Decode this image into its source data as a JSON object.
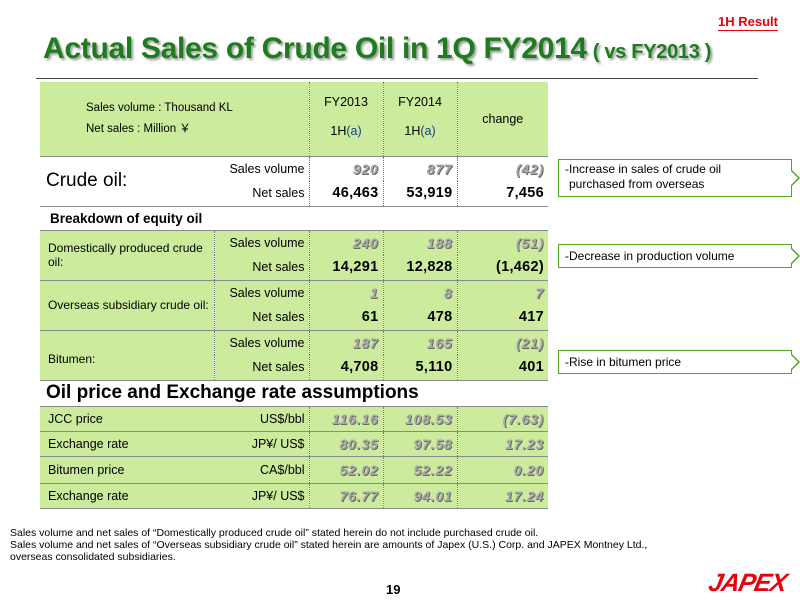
{
  "tag": "1H Result",
  "title": "Actual Sales of  Crude Oil  in 1Q FY2014",
  "title_sub": "( vs FY2013 )",
  "header": {
    "units_line1": "Sales volume : Thousand KL",
    "units_line2": "Net sales : Million ￥",
    "col1_year": "FY2013",
    "col1_period_prefix": "1H",
    "col1_period_suffix": "(a)",
    "col2_year": "FY2014",
    "col2_period_prefix": "1H",
    "col2_period_suffix": "(a)",
    "col3": "change"
  },
  "crude": {
    "label": "Crude oil:",
    "rows": [
      {
        "metric": "Sales volume",
        "fy2013": "920",
        "fy2014": "877",
        "change": "(42)"
      },
      {
        "metric": "Net sales",
        "fy2013": "46,463",
        "fy2014": "53,919",
        "change": "7,456"
      }
    ]
  },
  "breakdown_title": "Breakdown of equity oil",
  "domestic": {
    "label": "Domestically produced crude oil:",
    "rows": [
      {
        "metric": "Sales volume",
        "fy2013": "240",
        "fy2014": "188",
        "change": "(51)"
      },
      {
        "metric": "Net sales",
        "fy2013": "14,291",
        "fy2014": "12,828",
        "change": "(1,462)"
      }
    ]
  },
  "overseas": {
    "label": "Overseas subsidiary crude oil:",
    "rows": [
      {
        "metric": "Sales volume",
        "fy2013": "1",
        "fy2014": "8",
        "change": "7"
      },
      {
        "metric": "Net sales",
        "fy2013": "61",
        "fy2014": "478",
        "change": "417"
      }
    ]
  },
  "bitumen": {
    "label": "Bitumen:",
    "rows": [
      {
        "metric": "Sales volume",
        "fy2013": "187",
        "fy2014": "165",
        "change": "(21)"
      },
      {
        "metric": "Net sales",
        "fy2013": "4,708",
        "fy2014": "5,110",
        "change": "401"
      }
    ]
  },
  "assumptions_title": "Oil price and Exchange rate assumptions",
  "assumptions": [
    {
      "label": "JCC price",
      "unit": "US$/bbl",
      "fy2013": "116.16",
      "fy2014": "108.53",
      "change": "(7.63)"
    },
    {
      "label": "Exchange rate",
      "unit": "JP¥/ US$",
      "fy2013": "80.35",
      "fy2014": "97.58",
      "change": "17.23"
    },
    {
      "label": "Bitumen price",
      "unit": "CA$/bbl",
      "fy2013": "52.02",
      "fy2014": "52.22",
      "change": "0.20"
    },
    {
      "label": "Exchange rate",
      "unit": "JP¥/ US$",
      "fy2013": "76.77",
      "fy2014": "94.01",
      "change": "17.24"
    }
  ],
  "callouts": {
    "crude_line1": "-Increase in sales of crude oil",
    "crude_line2": "purchased from overseas",
    "domestic": "-Decrease in production volume",
    "bitumen": "-Rise in bitumen price"
  },
  "notes": {
    "line1": "Sales volume and net sales of “Domestically produced crude oil” stated herein do not include purchased crude oil.",
    "line2": "Sales volume and net sales of “Overseas subsidiary crude oil” stated herein are amounts of Japex (U.S.) Corp. and JAPEX Montney Ltd.,",
    "line3": "overseas consolidated subsidiaries."
  },
  "page_number": "19",
  "logo": "JAPEX",
  "colors": {
    "title_green": "#1e7b1e",
    "table_green": "#cceb9c",
    "callout_border": "#4da91a",
    "accent_red": "#e8000b"
  }
}
